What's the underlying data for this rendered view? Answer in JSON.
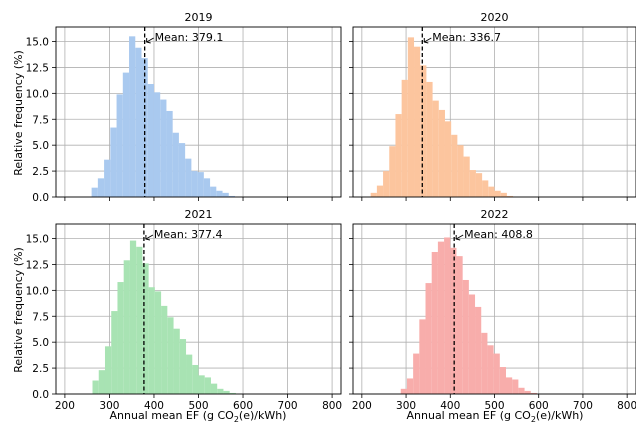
{
  "ylabel": "Relative frequency (%)",
  "xlabel_pre": "Annual mean EF (g CO",
  "xlabel_sub": "2",
  "xlabel_post": "(e)/kWh)",
  "chart_data": [
    {
      "type": "bar",
      "title": "2019",
      "color": "#a9c9ef",
      "mean": 379.1,
      "mean_label": "Mean: 379.1",
      "bin_width": 14,
      "bin_starts": [
        260,
        274,
        288,
        302,
        316,
        330,
        344,
        358,
        372,
        386,
        400,
        414,
        428,
        442,
        456,
        470,
        484,
        498,
        512,
        526,
        540,
        554,
        568
      ],
      "values": [
        0.9,
        1.8,
        3.6,
        6.7,
        9.9,
        12.0,
        15.5,
        14.4,
        13.4,
        10.9,
        10.1,
        9.4,
        8.3,
        6.2,
        5.2,
        3.7,
        2.5,
        2.4,
        1.8,
        1.0,
        0.6,
        0.4,
        0.1
      ],
      "xlim": [
        180,
        820
      ],
      "xticks": [
        200,
        300,
        400,
        500,
        600,
        700,
        800
      ],
      "ylim": [
        0,
        16.4
      ],
      "yticks": [
        0.0,
        2.5,
        5.0,
        7.5,
        10.0,
        12.5,
        15.0
      ],
      "ytick_labels": [
        "0.0",
        "2.5",
        "5.0",
        "7.5",
        "10.0",
        "12.5",
        "15.0"
      ],
      "xlabel": "",
      "ylabel": "Relative frequency (%)",
      "grid": true
    },
    {
      "type": "bar",
      "title": "2020",
      "color": "#fcc59e",
      "mean": 336.7,
      "mean_label": "Mean: 336.7",
      "bin_width": 14,
      "bin_starts": [
        220,
        234,
        248,
        262,
        276,
        290,
        304,
        318,
        332,
        346,
        360,
        374,
        388,
        402,
        416,
        430,
        444,
        458,
        472,
        486,
        500,
        514,
        528
      ],
      "values": [
        0.4,
        1.1,
        2.5,
        4.9,
        8.0,
        11.3,
        15.4,
        14.5,
        12.7,
        11.1,
        9.3,
        8.4,
        7.3,
        6.0,
        5.0,
        3.9,
        2.6,
        2.3,
        1.6,
        1.0,
        0.6,
        0.4,
        0.1
      ],
      "xlim": [
        180,
        820
      ],
      "xticks": [
        200,
        300,
        400,
        500,
        600,
        700,
        800
      ],
      "ylim": [
        0,
        16.4
      ],
      "yticks": [
        0.0,
        2.5,
        5.0,
        7.5,
        10.0,
        12.5,
        15.0
      ],
      "ytick_labels": [
        "0.0",
        "2.5",
        "5.0",
        "7.5",
        "10.0",
        "12.5",
        "15.0"
      ],
      "xlabel": "",
      "ylabel": "",
      "grid": true
    },
    {
      "type": "bar",
      "title": "2021",
      "color": "#a8e3b3",
      "mean": 377.4,
      "mean_label": "Mean: 377.4",
      "bin_width": 14,
      "bin_starts": [
        262,
        276,
        290,
        304,
        318,
        332,
        346,
        360,
        374,
        388,
        402,
        416,
        430,
        444,
        458,
        472,
        486,
        500,
        514,
        528,
        542,
        556,
        570
      ],
      "values": [
        1.3,
        2.3,
        4.6,
        8.0,
        10.8,
        12.9,
        14.8,
        14.2,
        12.6,
        10.3,
        9.9,
        8.5,
        7.4,
        6.3,
        5.3,
        3.8,
        2.8,
        1.8,
        1.6,
        1.0,
        0.5,
        0.3,
        0.1
      ],
      "xlim": [
        180,
        820
      ],
      "xticks": [
        200,
        300,
        400,
        500,
        600,
        700,
        800
      ],
      "ylim": [
        0,
        16.4
      ],
      "yticks": [
        0.0,
        2.5,
        5.0,
        7.5,
        10.0,
        12.5,
        15.0
      ],
      "ytick_labels": [
        "0.0",
        "2.5",
        "5.0",
        "7.5",
        "10.0",
        "12.5",
        "15.0"
      ],
      "xlabel": "Annual mean EF (g CO2(e)/kWh)",
      "ylabel": "Relative frequency (%)",
      "grid": true
    },
    {
      "type": "bar",
      "title": "2022",
      "color": "#f8adab",
      "mean": 408.8,
      "mean_label": "Mean: 408.8",
      "bin_width": 14,
      "bin_starts": [
        288,
        302,
        316,
        330,
        344,
        358,
        372,
        386,
        400,
        414,
        428,
        442,
        456,
        470,
        484,
        498,
        512,
        526,
        540,
        554,
        568,
        582
      ],
      "values": [
        0.5,
        1.5,
        3.9,
        7.2,
        10.7,
        13.7,
        14.7,
        15.1,
        14.1,
        13.3,
        11.0,
        9.6,
        8.4,
        5.9,
        4.7,
        3.9,
        2.6,
        1.6,
        1.4,
        0.6,
        0.3,
        0.1
      ],
      "xlim": [
        180,
        820
      ],
      "xticks": [
        200,
        300,
        400,
        500,
        600,
        700,
        800
      ],
      "ylim": [
        0,
        16.4
      ],
      "yticks": [
        0.0,
        2.5,
        5.0,
        7.5,
        10.0,
        12.5,
        15.0
      ],
      "ytick_labels": [
        "0.0",
        "2.5",
        "5.0",
        "7.5",
        "10.0",
        "12.5",
        "15.0"
      ],
      "xlabel": "Annual mean EF (g CO2(e)/kWh)",
      "ylabel": "",
      "grid": true
    }
  ]
}
